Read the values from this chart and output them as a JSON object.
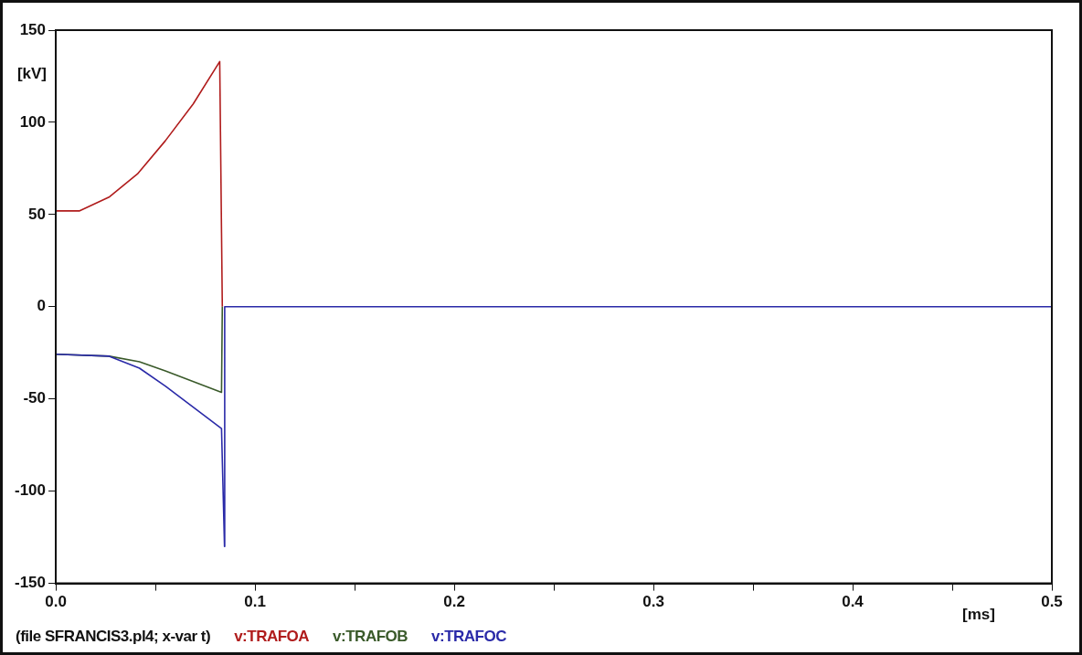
{
  "chart_data": {
    "type": "line",
    "ylabel": "[kV]",
    "xlabel": "[ms]",
    "annotations": [
      "(file SFRANCIS3.pl4; x-var t)"
    ],
    "xlim": [
      0,
      0.5
    ],
    "xticks": [
      {
        "value": 0,
        "label": "0.0"
      },
      {
        "value": 0.05,
        "label": null
      },
      0.1,
      {
        "value": 0.15,
        "label": null
      },
      0.2,
      {
        "value": 0.25,
        "label": null
      },
      0.3,
      {
        "value": 0.35,
        "label": null
      },
      0.4,
      {
        "value": 0.45,
        "label": null
      },
      0.5
    ],
    "ylim": [
      -150,
      150
    ],
    "yticks": [
      -150,
      -100,
      -50,
      0,
      50,
      100,
      150
    ],
    "grid": false,
    "legend": "bottom",
    "series": [
      {
        "name": "v:TRAFOA",
        "color": "#b01c1c",
        "x": [
          0,
          0.012,
          0.027,
          0.041,
          0.055,
          0.069,
          0.0823,
          0.0836
        ],
        "values": [
          52,
          52,
          59.6,
          72,
          90,
          110,
          133,
          0
        ]
      },
      {
        "name": "v:TRAFOB",
        "color": "#3a5a2a",
        "x": [
          0,
          0.0268,
          0.042,
          0.055,
          0.0832,
          0.0836
        ],
        "values": [
          -25.7,
          -26.8,
          -29.8,
          -34.8,
          -46.4,
          0
        ]
      },
      {
        "name": "v:TRAFOC",
        "color": "#2a2aa8",
        "x": [
          0,
          0.0268,
          0.042,
          0.055,
          0.0832,
          0.0847,
          0.0848,
          0.5
        ],
        "values": [
          -25.7,
          -26.8,
          -33.3,
          -43,
          -66,
          -130,
          0,
          0
        ]
      }
    ]
  }
}
